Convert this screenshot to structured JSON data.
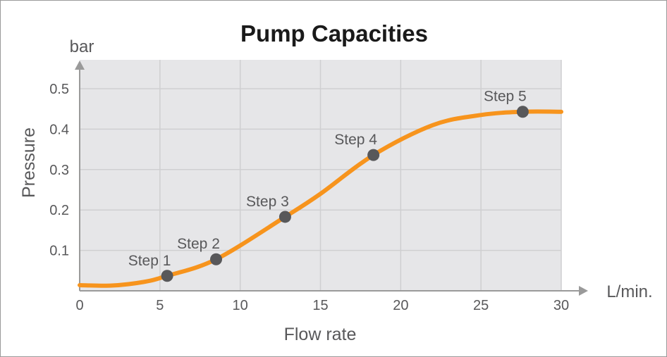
{
  "chart_data": {
    "type": "line",
    "title": "Pump Capacities",
    "xlabel": "Flow rate",
    "ylabel": "Pressure",
    "x_unit": "L/min.",
    "y_unit": "bar",
    "xlim": [
      0,
      30
    ],
    "ylim": [
      0,
      0.5
    ],
    "x_ticks": [
      "0",
      "5",
      "10",
      "15",
      "20",
      "25",
      "30"
    ],
    "y_ticks": [
      "0.1",
      "0.2",
      "0.3",
      "0.4",
      "0.5"
    ],
    "grid": true,
    "curve": {
      "x": [
        0,
        2,
        4,
        5.45,
        8.5,
        12.8,
        15,
        18.3,
        22,
        25,
        27.6,
        30
      ],
      "y": [
        0.014,
        0.013,
        0.022,
        0.037,
        0.078,
        0.183,
        0.24,
        0.336,
        0.41,
        0.435,
        0.443,
        0.443
      ]
    },
    "points": [
      {
        "label": "Step 1",
        "x": 5.45,
        "y": 0.037
      },
      {
        "label": "Step 2",
        "x": 8.5,
        "y": 0.078
      },
      {
        "label": "Step 3",
        "x": 12.8,
        "y": 0.183
      },
      {
        "label": "Step 4",
        "x": 18.3,
        "y": 0.336
      },
      {
        "label": "Step 5",
        "x": 27.6,
        "y": 0.443
      }
    ],
    "colors": {
      "curve": "#f7941d",
      "point": "#58585a",
      "plot_bg": "#e6e6e8",
      "grid": "#cfcfd1",
      "axis": "#9a9a9a",
      "text": "#58585a"
    }
  }
}
